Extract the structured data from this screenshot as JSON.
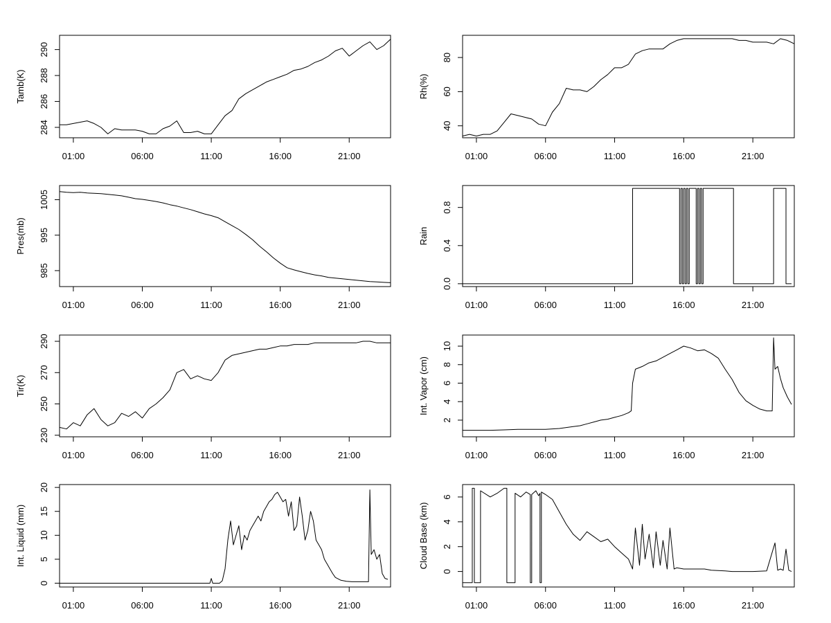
{
  "chart_data": [
    {
      "type": "line",
      "ylabel": "Tamb(K)",
      "xlim": [
        0,
        24
      ],
      "ylim": [
        283.2,
        291.1
      ],
      "x_ticks": [
        1,
        6,
        11,
        16,
        21
      ],
      "x_tick_labels": [
        "01:00",
        "06:00",
        "11:00",
        "16:00",
        "21:00"
      ],
      "y_ticks": [
        284,
        286,
        288,
        290
      ],
      "y_tick_labels": [
        "284",
        "286",
        "288",
        "290"
      ],
      "series": [
        {
          "x": [
            0,
            0.5,
            1,
            1.5,
            2,
            2.5,
            3,
            3.5,
            4,
            4.5,
            5,
            5.5,
            6,
            6.5,
            7,
            7.5,
            8,
            8.5,
            9,
            9.5,
            10,
            10.5,
            11,
            11.5,
            12,
            12.5,
            13,
            13.5,
            14,
            14.5,
            15,
            15.5,
            16,
            16.5,
            17,
            17.5,
            18,
            18.5,
            19,
            19.5,
            20,
            20.5,
            21,
            21.5,
            22,
            22.5,
            23,
            23.5,
            24
          ],
          "y": [
            284.2,
            284.2,
            284.3,
            284.4,
            284.5,
            284.3,
            284.0,
            283.5,
            283.9,
            283.8,
            283.8,
            283.8,
            283.7,
            283.5,
            283.5,
            283.9,
            284.1,
            284.5,
            283.6,
            283.6,
            283.7,
            283.5,
            283.5,
            284.2,
            284.9,
            285.3,
            286.2,
            286.6,
            286.9,
            287.2,
            287.5,
            287.7,
            287.9,
            288.1,
            288.4,
            288.5,
            288.7,
            289.0,
            289.2,
            289.5,
            289.9,
            290.1,
            289.5,
            289.9,
            290.3,
            290.6,
            290.0,
            290.3,
            290.8
          ]
        }
      ]
    },
    {
      "type": "line",
      "ylabel": "Rh(%)",
      "xlim": [
        0,
        24
      ],
      "ylim": [
        33,
        93
      ],
      "x_ticks": [
        1,
        6,
        11,
        16,
        21
      ],
      "x_tick_labels": [
        "01:00",
        "06:00",
        "11:00",
        "16:00",
        "21:00"
      ],
      "y_ticks": [
        40,
        60,
        80
      ],
      "y_tick_labels": [
        "40",
        "60",
        "80"
      ],
      "series": [
        {
          "x": [
            0,
            0.5,
            1,
            1.5,
            2,
            2.5,
            3,
            3.5,
            4,
            4.5,
            5,
            5.5,
            6,
            6.5,
            7,
            7.5,
            8,
            8.5,
            9,
            9.5,
            10,
            10.5,
            11,
            11.5,
            12,
            12.5,
            13,
            13.5,
            14,
            14.5,
            15,
            15.5,
            16,
            16.5,
            17,
            17.5,
            18,
            18.5,
            19,
            19.5,
            20,
            20.5,
            21,
            21.5,
            22,
            22.5,
            23,
            23.5,
            24
          ],
          "y": [
            34,
            35,
            34,
            35,
            35,
            37,
            42,
            47,
            46,
            45,
            44,
            41,
            40,
            48,
            53,
            62,
            61,
            61,
            60,
            63,
            67,
            70,
            74,
            74,
            76,
            82,
            84,
            85,
            85,
            85,
            88,
            90,
            91,
            91,
            91,
            91,
            91,
            91,
            91,
            91,
            90,
            90,
            89,
            89,
            89,
            88,
            91,
            90,
            88
          ]
        }
      ]
    },
    {
      "type": "line",
      "ylabel": "Pres(mb)",
      "xlim": [
        0,
        24
      ],
      "ylim": [
        980.5,
        1009
      ],
      "x_ticks": [
        1,
        6,
        11,
        16,
        21
      ],
      "x_tick_labels": [
        "01:00",
        "06:00",
        "11:00",
        "16:00",
        "21:00"
      ],
      "y_ticks": [
        985,
        995,
        1005
      ],
      "y_tick_labels": [
        "985",
        "995",
        "1005"
      ],
      "series": [
        {
          "x": [
            0,
            0.5,
            1,
            1.5,
            2,
            2.5,
            3,
            3.5,
            4,
            4.5,
            5,
            5.5,
            6,
            6.5,
            7,
            7.5,
            8,
            8.5,
            9,
            9.5,
            10,
            10.5,
            11,
            11.5,
            12,
            12.5,
            13,
            13.5,
            14,
            14.5,
            15,
            15.5,
            16,
            16.5,
            17,
            17.5,
            18,
            18.5,
            19,
            19.5,
            20,
            20.5,
            21,
            21.5,
            22,
            22.5,
            23,
            23.5,
            24
          ],
          "y": [
            1007.3,
            1007.1,
            1007.0,
            1007.1,
            1006.9,
            1006.8,
            1006.7,
            1006.5,
            1006.3,
            1006.1,
            1005.7,
            1005.3,
            1005.1,
            1004.8,
            1004.5,
            1004.1,
            1003.6,
            1003.2,
            1002.7,
            1002.2,
            1001.6,
            1001.0,
            1000.5,
            999.9,
            998.8,
            997.7,
            996.6,
            995.2,
            993.7,
            991.9,
            990.3,
            988.6,
            987.1,
            985.8,
            985.2,
            984.7,
            984.2,
            983.8,
            983.5,
            983.1,
            982.9,
            982.7,
            982.5,
            982.3,
            982.1,
            981.9,
            981.8,
            981.7,
            981.6
          ]
        }
      ]
    },
    {
      "type": "line",
      "ylabel": "Rain",
      "xlim": [
        0,
        24
      ],
      "ylim": [
        -0.03,
        1.03
      ],
      "x_ticks": [
        1,
        6,
        11,
        16,
        21
      ],
      "x_tick_labels": [
        "01:00",
        "06:00",
        "11:00",
        "16:00",
        "21:00"
      ],
      "y_ticks": [
        0,
        0.4,
        0.8
      ],
      "y_tick_labels": [
        "0.0",
        "0.4",
        "0.8"
      ],
      "series": [
        {
          "x": [
            0,
            12.3,
            12.3,
            15.7,
            15.7,
            15.8,
            15.8,
            15.9,
            15.9,
            16.0,
            16.0,
            16.1,
            16.1,
            16.2,
            16.2,
            16.3,
            16.3,
            16.4,
            16.4,
            16.9,
            16.9,
            17.0,
            17.0,
            17.1,
            17.1,
            17.2,
            17.2,
            17.3,
            17.3,
            17.4,
            17.4,
            19.6,
            19.6,
            22.5,
            22.5,
            22.6,
            22.6,
            23.4,
            23.4,
            23.8
          ],
          "y": [
            0,
            0,
            1,
            1,
            0,
            0,
            1,
            1,
            0,
            0,
            1,
            1,
            0,
            0,
            1,
            1,
            0,
            0,
            1,
            1,
            0,
            0,
            1,
            1,
            0,
            0,
            1,
            1,
            0,
            0,
            1,
            1,
            0,
            0,
            1,
            1,
            1,
            1,
            0,
            0
          ]
        }
      ]
    },
    {
      "type": "line",
      "ylabel": "Tir(K)",
      "xlim": [
        0,
        24
      ],
      "ylim": [
        229,
        294
      ],
      "x_ticks": [
        1,
        6,
        11,
        16,
        21
      ],
      "x_tick_labels": [
        "01:00",
        "06:00",
        "11:00",
        "16:00",
        "21:00"
      ],
      "y_ticks": [
        230,
        250,
        270,
        290
      ],
      "y_tick_labels": [
        "230",
        "250",
        "270",
        "290"
      ],
      "series": [
        {
          "x": [
            0,
            0.5,
            1,
            1.5,
            2,
            2.5,
            3,
            3.5,
            4,
            4.5,
            5,
            5.5,
            6,
            6.5,
            7,
            7.5,
            8,
            8.5,
            9,
            9.5,
            10,
            10.5,
            11,
            11.5,
            12,
            12.5,
            13,
            13.5,
            14,
            14.5,
            15,
            15.5,
            16,
            16.5,
            17,
            17.5,
            18,
            18.5,
            19,
            19.5,
            20,
            20.5,
            21,
            21.5,
            22,
            22.5,
            23,
            23.5,
            24
          ],
          "y": [
            235,
            234,
            238,
            236,
            243,
            247,
            240,
            236,
            238,
            244,
            242,
            245,
            241,
            247,
            250,
            254,
            259,
            270,
            272,
            266,
            268,
            266,
            265,
            270,
            278,
            281,
            282,
            283,
            284,
            285,
            285,
            286,
            287,
            287,
            288,
            288,
            288,
            289,
            289,
            289,
            289,
            289,
            289,
            289,
            290,
            290,
            289,
            289,
            289
          ]
        }
      ]
    },
    {
      "type": "line",
      "ylabel": "Int. Vapor (cm)",
      "xlim": [
        0,
        24
      ],
      "ylim": [
        0.2,
        11.2
      ],
      "x_ticks": [
        1,
        6,
        11,
        16,
        21
      ],
      "x_tick_labels": [
        "01:00",
        "06:00",
        "11:00",
        "16:00",
        "21:00"
      ],
      "y_ticks": [
        2,
        4,
        6,
        8,
        10
      ],
      "y_tick_labels": [
        "2",
        "4",
        "6",
        "8",
        "10"
      ],
      "series": [
        {
          "x": [
            0,
            1,
            2,
            3,
            4,
            5,
            6,
            7,
            8,
            8.5,
            9,
            9.5,
            10,
            10.5,
            11,
            11.5,
            12,
            12.2,
            12.3,
            12.5,
            13,
            13.5,
            14,
            14.5,
            15,
            15.5,
            16,
            16.5,
            17,
            17.5,
            18,
            18.5,
            19,
            19.5,
            20,
            20.5,
            21,
            21.5,
            22,
            22.4,
            22.5,
            22.6,
            22.8,
            23,
            23.2,
            23.5,
            23.8
          ],
          "y": [
            0.9,
            0.9,
            0.9,
            0.95,
            1.0,
            1.0,
            1.0,
            1.1,
            1.3,
            1.4,
            1.6,
            1.8,
            2.0,
            2.1,
            2.3,
            2.5,
            2.8,
            3.0,
            6.0,
            7.5,
            7.8,
            8.2,
            8.4,
            8.8,
            9.2,
            9.6,
            10.0,
            9.8,
            9.5,
            9.6,
            9.2,
            8.7,
            7.5,
            6.4,
            5.0,
            4.1,
            3.6,
            3.2,
            3.0,
            3.0,
            10.9,
            7.5,
            7.8,
            6.5,
            5.5,
            4.5,
            3.7
          ]
        }
      ]
    },
    {
      "type": "line",
      "ylabel": "Int. Liquid (mm)",
      "xlim": [
        0,
        24
      ],
      "ylim": [
        -0.8,
        20.6
      ],
      "x_ticks": [
        1,
        6,
        11,
        16,
        21
      ],
      "x_tick_labels": [
        "01:00",
        "06:00",
        "11:00",
        "16:00",
        "21:00"
      ],
      "y_ticks": [
        0,
        5,
        10,
        15,
        20
      ],
      "y_tick_labels": [
        "0",
        "5",
        "10",
        "15",
        "20"
      ],
      "series": [
        {
          "x": [
            0,
            10.9,
            11.0,
            11.1,
            11.6,
            11.8,
            12.0,
            12.2,
            12.4,
            12.6,
            12.8,
            13.0,
            13.2,
            13.4,
            13.6,
            13.8,
            14.0,
            14.2,
            14.4,
            14.6,
            14.8,
            15.0,
            15.2,
            15.4,
            15.6,
            15.8,
            16.0,
            16.2,
            16.4,
            16.6,
            16.8,
            17.0,
            17.2,
            17.4,
            17.6,
            17.8,
            18.0,
            18.2,
            18.4,
            18.6,
            18.8,
            19.0,
            19.2,
            19.4,
            19.6,
            19.8,
            20.0,
            20.4,
            20.8,
            21.2,
            21.6,
            22.0,
            22.4,
            22.5,
            22.6,
            22.8,
            23.0,
            23.2,
            23.4,
            23.6,
            23.8
          ],
          "y": [
            0,
            0,
            1,
            0,
            0,
            0.5,
            3,
            9,
            13,
            8,
            10,
            12,
            7,
            10,
            9,
            11,
            12,
            13,
            14,
            13,
            15,
            16,
            17,
            17.5,
            18.5,
            19,
            18,
            17,
            17.5,
            14,
            17,
            11,
            12,
            18,
            14,
            9,
            11,
            15,
            13,
            9,
            8,
            7,
            5,
            4,
            3,
            2,
            1.2,
            0.6,
            0.4,
            0.3,
            0.3,
            0.3,
            0.3,
            19.5,
            6,
            7,
            5,
            6,
            2,
            1,
            0.8
          ]
        }
      ]
    },
    {
      "type": "line",
      "ylabel": "Cloud Base (km)",
      "xlim": [
        0,
        24
      ],
      "ylim": [
        -1.25,
        7.0
      ],
      "x_ticks": [
        1,
        6,
        11,
        16,
        21
      ],
      "x_tick_labels": [
        "01:00",
        "06:00",
        "11:00",
        "16:00",
        "21:00"
      ],
      "y_ticks": [
        0,
        2,
        4,
        6
      ],
      "y_tick_labels": [
        "0",
        "2",
        "4",
        "6"
      ],
      "series": [
        {
          "x": [
            0,
            0.7,
            0.7,
            0.85,
            0.85,
            1.3,
            1.3,
            2.0,
            2.5,
            3.0,
            3.2,
            3.2,
            3.8,
            3.8,
            4.2,
            4.6,
            4.9,
            4.9,
            5.0,
            5.0,
            5.3,
            5.5,
            5.6,
            5.6,
            5.7,
            5.7,
            6.0,
            6.5,
            7.0,
            7.5,
            8.0,
            8.5,
            9.0,
            9.5,
            10.0,
            10.5,
            11.0,
            11.5,
            12.0,
            12.3,
            12.5,
            12.8,
            13.0,
            13.2,
            13.5,
            13.8,
            14.0,
            14.3,
            14.5,
            14.8,
            15.0,
            15.3,
            15.5,
            16.0,
            17.0,
            17.5,
            18.0,
            19.0,
            19.5,
            20.0,
            21.0,
            22.0,
            22.6,
            22.8,
            23.0,
            23.2,
            23.4,
            23.6,
            23.8
          ],
          "y": [
            -0.9,
            -0.9,
            6.7,
            6.7,
            -0.9,
            -0.9,
            6.5,
            6.0,
            6.3,
            6.7,
            6.7,
            -0.9,
            -0.9,
            6.3,
            6.0,
            6.4,
            6.2,
            -0.9,
            -0.9,
            6.2,
            6.5,
            6.1,
            6.3,
            -0.9,
            -0.9,
            6.4,
            6.2,
            5.8,
            4.8,
            3.8,
            3.0,
            2.5,
            3.2,
            2.8,
            2.4,
            2.6,
            2.0,
            1.5,
            1.0,
            0.2,
            3.5,
            0.5,
            3.8,
            1.0,
            3.0,
            0.3,
            3.2,
            0.5,
            2.5,
            0.2,
            3.5,
            0.2,
            0.3,
            0.2,
            0.2,
            0.2,
            0.1,
            0.05,
            0.0,
            0.0,
            0.0,
            0.05,
            2.3,
            0.1,
            0.2,
            0.1,
            1.8,
            0.1,
            0.0
          ]
        }
      ]
    }
  ]
}
